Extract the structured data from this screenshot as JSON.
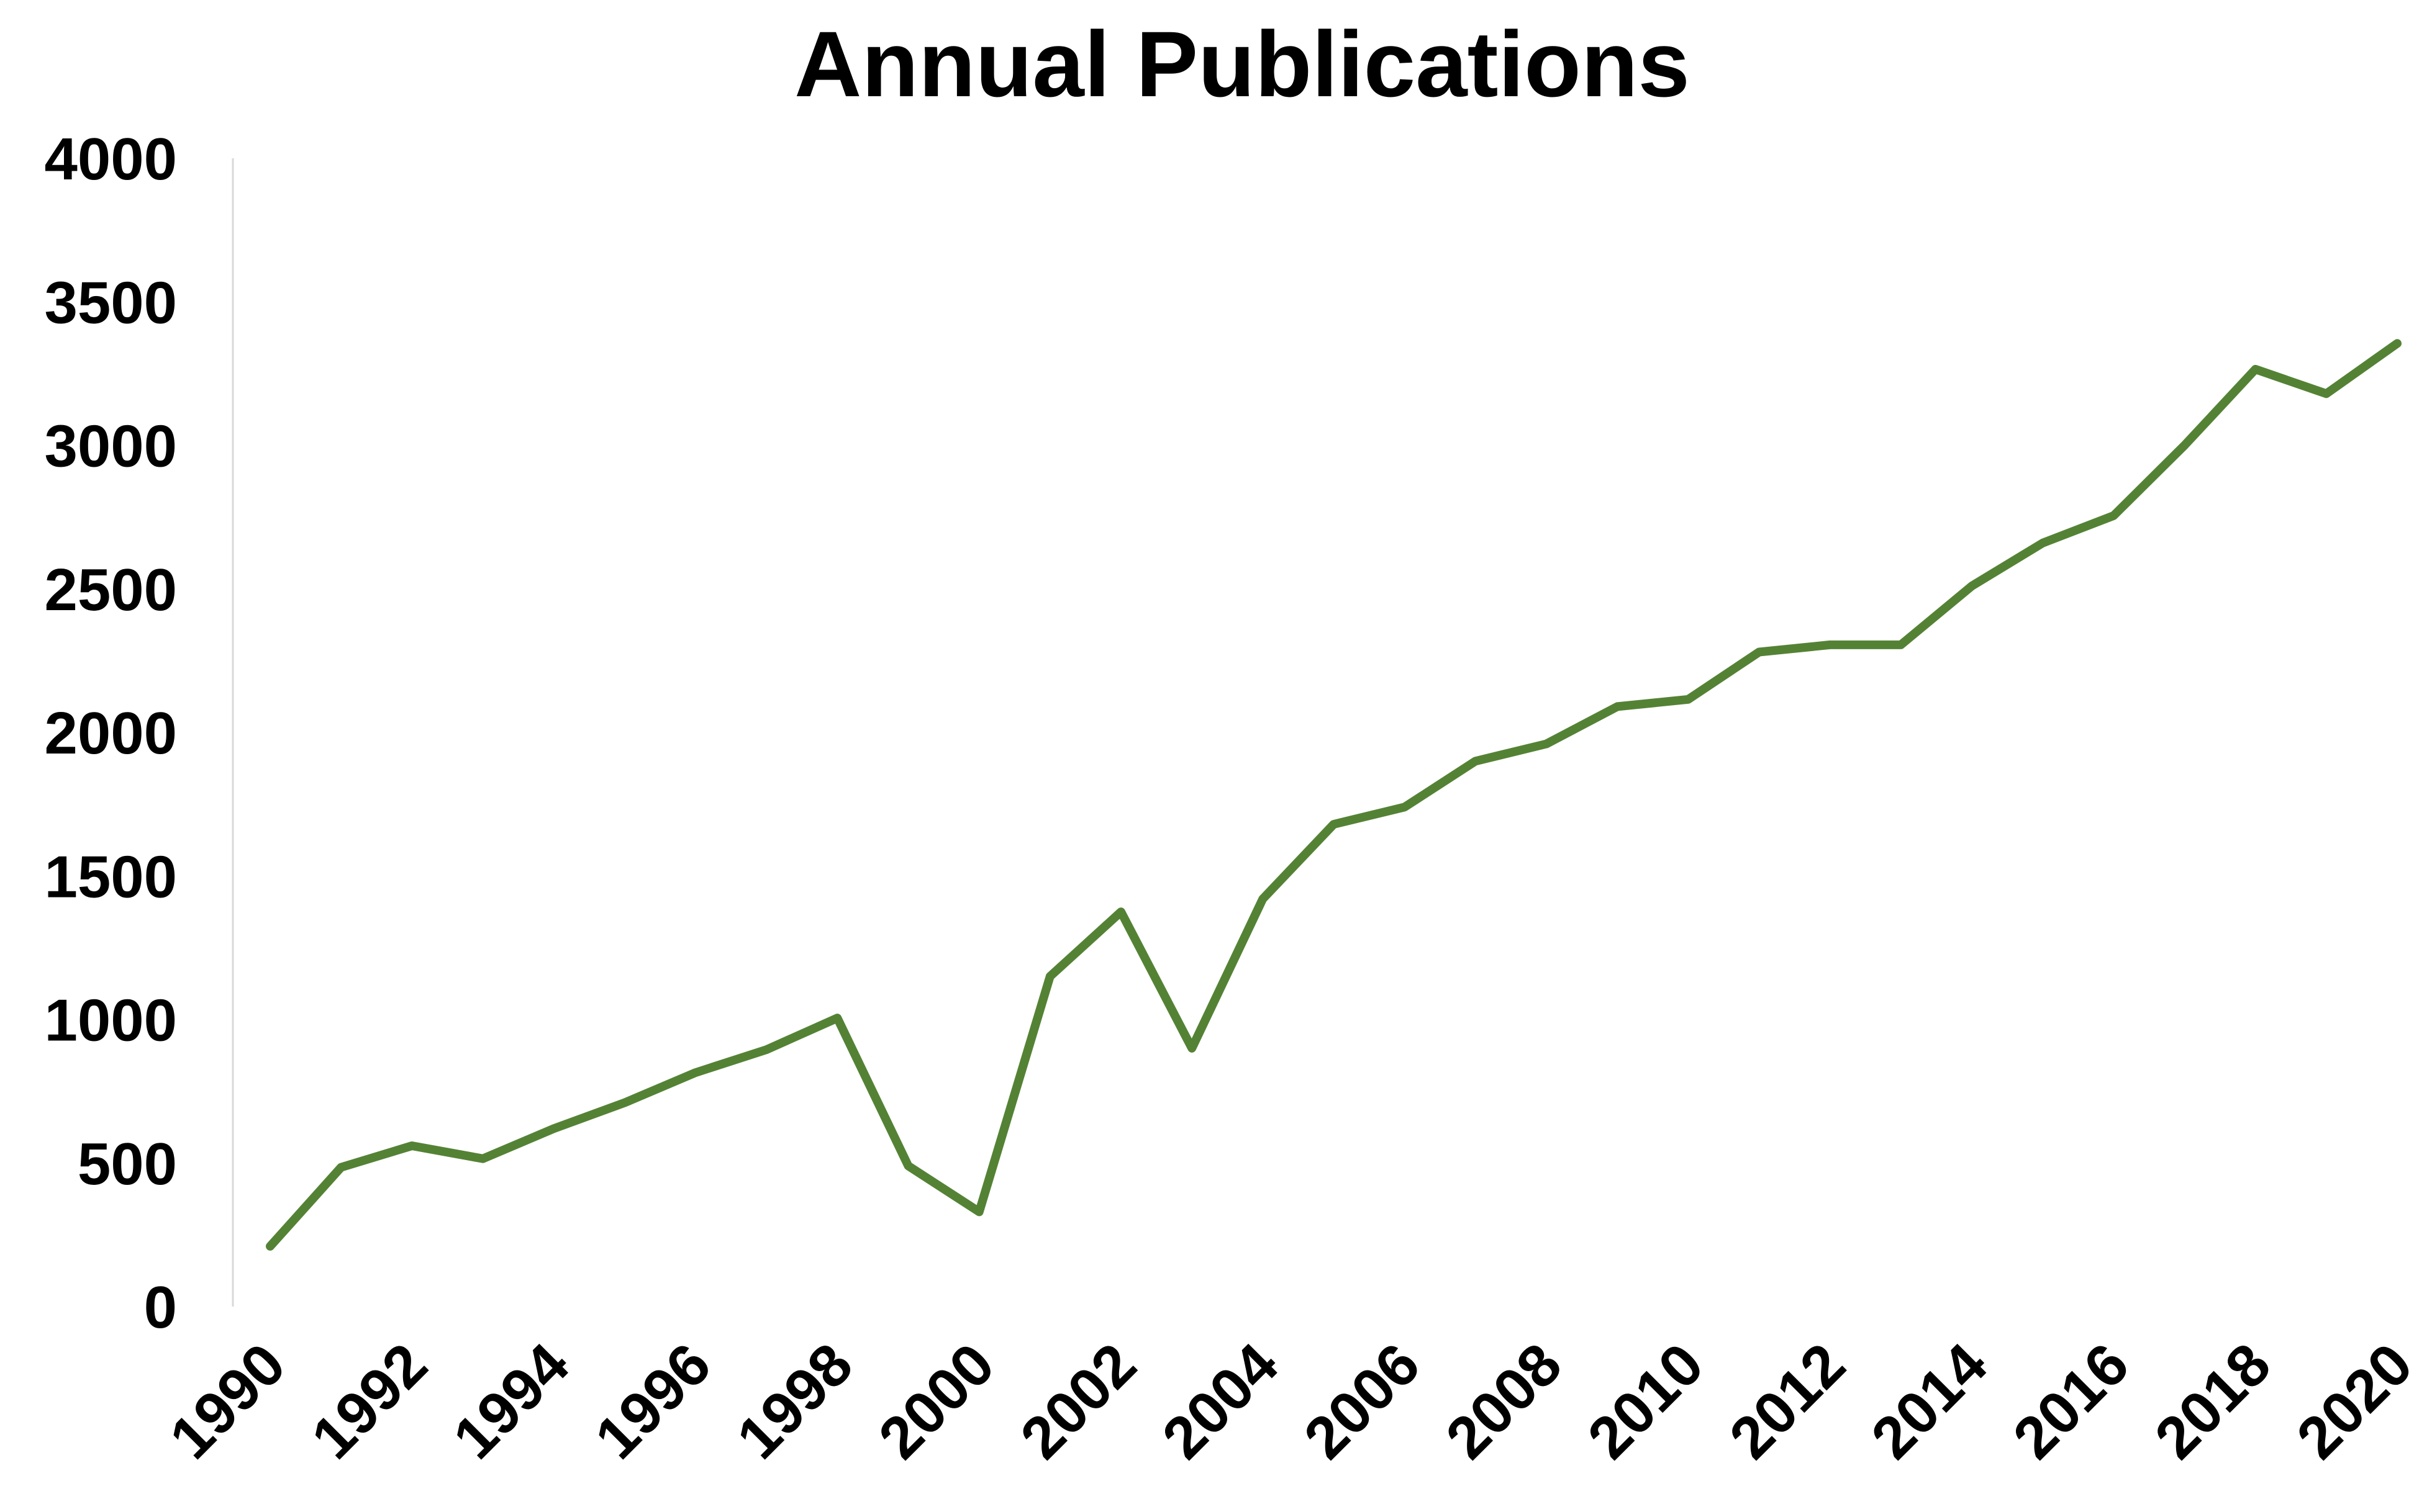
{
  "chart_data": {
    "type": "line",
    "title": "Annual Publications",
    "xlabel": "",
    "ylabel": "",
    "x": [
      1990,
      1991,
      1992,
      1993,
      1994,
      1995,
      1996,
      1997,
      1998,
      1999,
      2000,
      2001,
      2002,
      2003,
      2004,
      2005,
      2006,
      2007,
      2008,
      2009,
      2010,
      2011,
      2012,
      2013,
      2014,
      2015,
      2016,
      2017,
      2018,
      2019,
      2020
    ],
    "series": [
      {
        "values": [
          210,
          485,
          560,
          515,
          620,
          710,
          815,
          895,
          1005,
          490,
          330,
          1150,
          1375,
          900,
          1420,
          1680,
          1740,
          1900,
          1960,
          2090,
          2115,
          2280,
          2305,
          2305,
          2510,
          2660,
          2755,
          3000,
          3265,
          3180,
          3355
        ],
        "color": "#548235"
      }
    ],
    "xticks": [
      "1990",
      "1992",
      "1994",
      "1996",
      "1998",
      "2000",
      "2002",
      "2004",
      "2006",
      "2008",
      "2010",
      "2012",
      "2014",
      "2016",
      "2018",
      "2020"
    ],
    "yticks": [
      "0",
      "500",
      "1000",
      "1500",
      "2000",
      "2500",
      "3000",
      "3500",
      "4000"
    ],
    "xlim": [
      1990,
      2020
    ],
    "ylim": [
      0,
      4000
    ],
    "grid": false,
    "legend": "none",
    "axis_color": "#d9d9d9"
  }
}
